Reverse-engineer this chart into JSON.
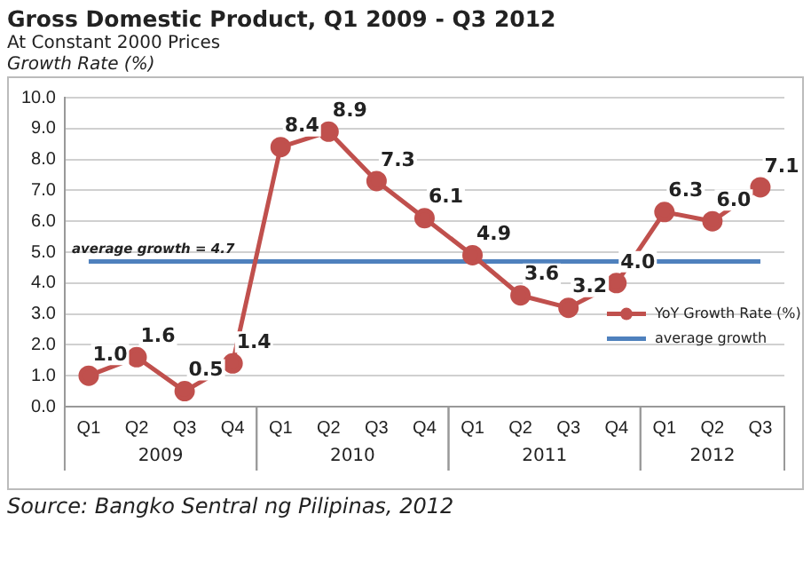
{
  "chart_data": {
    "type": "line",
    "title": "Gross Domestic Product, Q1 2009 - Q3 2012",
    "subtitle": "At Constant 2000 Prices",
    "ylabel": "Growth Rate (%)",
    "categories": [
      "Q1",
      "Q2",
      "Q3",
      "Q4",
      "Q1",
      "Q2",
      "Q3",
      "Q4",
      "Q1",
      "Q2",
      "Q3",
      "Q4",
      "Q1",
      "Q2",
      "Q3"
    ],
    "series": [
      {
        "name": "YoY Growth Rate (%)",
        "color": "#c0504d",
        "values": [
          1.0,
          1.6,
          0.5,
          1.4,
          8.4,
          8.9,
          7.3,
          6.1,
          4.9,
          3.6,
          3.2,
          4.0,
          6.3,
          6.0,
          7.1
        ],
        "value_labels": [
          "1.0",
          "1.6",
          "0.5",
          "1.4",
          "8.4",
          "8.9",
          "7.3",
          "6.1",
          "4.9",
          "3.6",
          "3.2",
          "4.0",
          "6.3",
          "6.0",
          "7.1"
        ],
        "marker": "circle"
      },
      {
        "name": "average growth",
        "color": "#4f81bd",
        "values": [
          4.7,
          4.7,
          4.7,
          4.7,
          4.7,
          4.7,
          4.7,
          4.7,
          4.7,
          4.7,
          4.7,
          4.7,
          4.7,
          4.7,
          4.7
        ],
        "marker": "none"
      }
    ],
    "annotations": [
      "average growth = 4.7",
      "2009",
      "2010",
      "2011",
      "2012",
      "Source: Bangko Sentral ng Pilipinas, 2012"
    ],
    "ylim": [
      0,
      10
    ],
    "yticks": [
      {
        "value": 0,
        "label": "0.0"
      },
      {
        "value": 1,
        "label": "1.0"
      },
      {
        "value": 2,
        "label": "2.0"
      },
      {
        "value": 3,
        "label": "3.0"
      },
      {
        "value": 4,
        "label": "4.0"
      },
      {
        "value": 5,
        "label": "5.0"
      },
      {
        "value": 6,
        "label": "6.0"
      },
      {
        "value": 7,
        "label": "7.0"
      },
      {
        "value": 8,
        "label": "8.0"
      },
      {
        "value": 9,
        "label": "9.0"
      },
      {
        "value": 10,
        "label": "10.0"
      }
    ],
    "grid": "y",
    "legend": "right"
  }
}
